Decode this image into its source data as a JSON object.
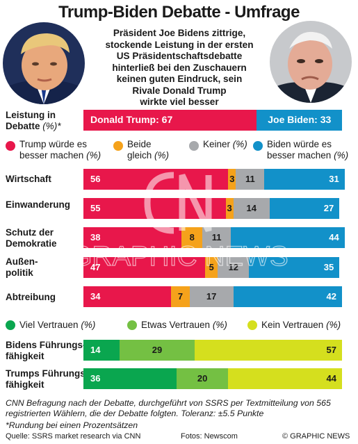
{
  "title": "Trump-Biden Debatte - Umfrage",
  "subtitle_lines": [
    "Präsident Joe Bidens zittrige,",
    "stockende Leistung in der ersten",
    "US Präsidentschaftsdebatte",
    "hinterließ bei den Zuschauern",
    "keinen guten Eindruck, sein",
    "Rivale Donald Trump",
    "wirkte viel besser"
  ],
  "performance": {
    "label_line1": "Leistung in",
    "label_line2": "Debatte",
    "label_unit": "(%)*",
    "trump_label": "Donald Trump: 67",
    "biden_label": "Joe Biden: 33"
  },
  "legend_issues": {
    "trump": {
      "line1": "Trump würde es",
      "line2": "besser machen",
      "unit": "(%)"
    },
    "both": {
      "line1": "Beide",
      "line2": "gleich",
      "unit": "(%)"
    },
    "neither": {
      "line1": "Keiner",
      "unit": "(%)"
    },
    "biden": {
      "line1": "Biden würde es",
      "line2": "besser machen",
      "unit": "(%)"
    }
  },
  "issue_rows": [
    {
      "label_lines": [
        "Wirtschaft"
      ]
    },
    {
      "label_lines": [
        "Einwanderung"
      ]
    },
    {
      "label_lines": [
        "Schutz der",
        "Demokratie"
      ]
    },
    {
      "label_lines": [
        "Außen-",
        "politik"
      ]
    },
    {
      "label_lines": [
        "Abtreibung"
      ]
    }
  ],
  "legend_trust": {
    "very": {
      "label": "Viel Vertrauen",
      "unit": "(%)"
    },
    "some": {
      "label": "Etwas Vertrauen",
      "unit": "(%)"
    },
    "none": {
      "label": "Kein Vertrauen",
      "unit": "(%)"
    }
  },
  "trust_rows": [
    {
      "label_lines": [
        "Bidens Führungs-",
        "fähigkeit"
      ]
    },
    {
      "label_lines": [
        "Trumps Führungs-",
        "fähigkeit"
      ]
    }
  ],
  "note_lines": [
    "CNN Befragung nach der Debatte, durchgeführt von SSRS per Textmitteilung von 565",
    "registrierten Wählern, die der  Debatte folgten. Toleranz: ±5.5 Punkte",
    "*Rundung bei einen Prozentsätzen"
  ],
  "footer": {
    "source": "Quelle: SSRS market research via CNN",
    "photos": "Fotos: Newscom",
    "copyright": "© GRAPHIC NEWS"
  },
  "colors": {
    "trump": "#e8174b",
    "both": "#f5a21b",
    "neither": "#a7a9ac",
    "biden": "#1291c9",
    "very": "#0aa64f",
    "some": "#74c043",
    "none": "#d5df1e"
  },
  "chart_data": [
    {
      "type": "bar",
      "orientation": "horizontal",
      "stacked": true,
      "categories": [
        "Leistung in Debatte"
      ],
      "series": [
        {
          "name": "Donald Trump",
          "values": [
            67
          ]
        },
        {
          "name": "Joe Biden",
          "values": [
            33
          ]
        }
      ],
      "xlim": [
        0,
        100
      ]
    },
    {
      "type": "bar",
      "orientation": "horizontal",
      "stacked": true,
      "categories": [
        "Wirtschaft",
        "Einwanderung",
        "Schutz der Demokratie",
        "Außenpolitik",
        "Abtreibung"
      ],
      "series": [
        {
          "name": "Trump würde es besser machen",
          "values": [
            56,
            55,
            38,
            47,
            34
          ]
        },
        {
          "name": "Beide gleich",
          "values": [
            3,
            3,
            8,
            5,
            7
          ]
        },
        {
          "name": "Keiner",
          "values": [
            11,
            14,
            11,
            12,
            17
          ]
        },
        {
          "name": "Biden würde es besser machen",
          "values": [
            31,
            27,
            44,
            35,
            42
          ]
        }
      ],
      "xlim": [
        0,
        100
      ]
    },
    {
      "type": "bar",
      "orientation": "horizontal",
      "stacked": true,
      "categories": [
        "Bidens Führungsfähigkeit",
        "Trumps Führungsfähigkeit"
      ],
      "series": [
        {
          "name": "Viel Vertrauen",
          "values": [
            14,
            36
          ]
        },
        {
          "name": "Etwas Vertrauen",
          "values": [
            29,
            20
          ]
        },
        {
          "name": "Kein Vertrauen",
          "values": [
            57,
            44
          ]
        }
      ],
      "xlim": [
        0,
        100
      ]
    }
  ]
}
